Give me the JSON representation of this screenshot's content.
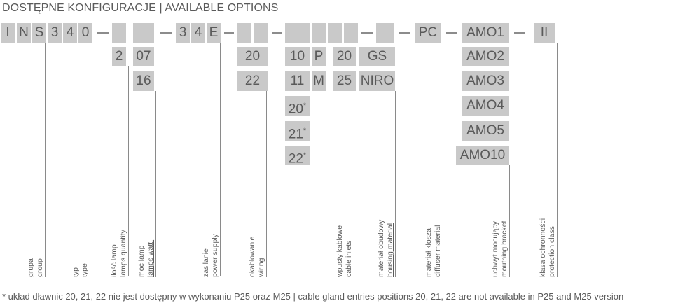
{
  "title": "DOSTĘPNE KONFIGURACJE | AVAILABLE OPTIONS",
  "code_row": {
    "fixed_chars": [
      "I",
      "N",
      "S",
      "3",
      "4",
      "0",
      "3",
      "4",
      "E",
      "PC",
      "AMO1",
      "II"
    ],
    "slots": [
      "",
      "",
      "",
      "",
      "",
      "",
      "",
      "",
      "",
      ""
    ]
  },
  "options": {
    "lamps_quantity": [
      "2"
    ],
    "lamps_watt": [
      "07",
      "16"
    ],
    "wiring": [
      "20",
      "22"
    ],
    "cable_inlets_pos": [
      "10",
      "11",
      "20*",
      "21*",
      "22*"
    ],
    "cable_inlets_type": [
      "P",
      "M"
    ],
    "cable_inlets_size": [
      "20",
      "25"
    ],
    "housing_material": [
      "GS",
      "NIRO"
    ],
    "mounting_bracket": [
      "AMO2",
      "AMO3",
      "AMO4",
      "AMO5",
      "AMO10"
    ]
  },
  "labels": [
    {
      "pl": "grupa",
      "en": "group"
    },
    {
      "pl": "typ",
      "en": "type"
    },
    {
      "pl": "ilość lamp",
      "en": "lamps quantity"
    },
    {
      "pl": "moc lamp",
      "en": "lamps watt."
    },
    {
      "pl": "zasilanie",
      "en": "power supply"
    },
    {
      "pl": "okablowanie",
      "en": "wiring"
    },
    {
      "pl": "wpusty kablowe",
      "en": "cable inlets"
    },
    {
      "pl": "materiał obudowy",
      "en": "housing material"
    },
    {
      "pl": "materiał klosza",
      "en": "diffuser material"
    },
    {
      "pl": "uchwyt mocujący",
      "en": "mouthing bracket"
    },
    {
      "pl": "klasa ochronności",
      "en": "protection class"
    }
  ],
  "footnote": "* układ dławnic 20, 21, 22 nie jest dostępny w wykonaniu P25 oraz M25 | cable gland entries positions 20, 21, 22 are not available in P25 and M25 version",
  "colors": {
    "box_fill": "#c9c9c9",
    "text": "#5a5a5a",
    "line": "#8a8a8a"
  }
}
